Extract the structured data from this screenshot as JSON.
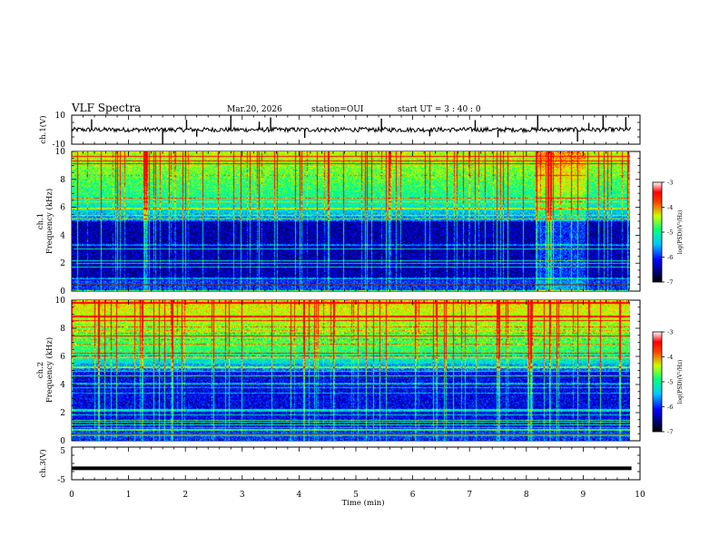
{
  "header": {
    "title": "VLF Spectra",
    "date": "Mar.20, 2026",
    "station": "station=OUI",
    "start": "start  UT =  3 : 40 : 0"
  },
  "chart_data": [
    {
      "type": "line",
      "name": "ch1_waveform",
      "ylabel": "ch.1(V)",
      "ylim": [
        -10,
        10
      ],
      "yticks": [
        "10",
        "-10"
      ],
      "baseline_value": 0,
      "spike_times_min": [
        0.35,
        1.6,
        2.02,
        2.2,
        2.8,
        3.3,
        3.5,
        4.1,
        5.45,
        6.3,
        7.1,
        7.5,
        8.2,
        8.9,
        9.1,
        9.35,
        9.75
      ]
    },
    {
      "type": "heatmap",
      "name": "ch1_spectrogram",
      "ylabel": "ch.1\nFrequency (kHz)",
      "xlim": [
        0,
        10
      ],
      "ylim": [
        0,
        10
      ],
      "yticks": [
        "0",
        "2",
        "4",
        "6",
        "8",
        "10"
      ],
      "data_end_min": 9.85,
      "colorbar": {
        "label": "log(PSD)(V²/Hz)",
        "range": [
          -7,
          -3
        ],
        "ticks": [
          "-3",
          "-4",
          "-5",
          "-6",
          "-7"
        ]
      }
    },
    {
      "type": "heatmap",
      "name": "ch2_spectrogram",
      "ylabel": "ch.2\nFrequency (kHz)",
      "xlim": [
        0,
        10
      ],
      "ylim": [
        0,
        10
      ],
      "yticks": [
        "0",
        "2",
        "4",
        "6",
        "8",
        "10"
      ],
      "data_end_min": 9.85,
      "colorbar": {
        "label": "log(PSD)(V²/Hz)",
        "range": [
          -7,
          -3
        ],
        "ticks": [
          "-3",
          "-4",
          "-5",
          "-6",
          "-7"
        ]
      }
    },
    {
      "type": "line",
      "name": "ch3_waveform",
      "ylabel": "ch.3(V)",
      "ylim": [
        -5,
        5
      ],
      "yticks": [
        "5",
        "-5"
      ],
      "level_value": -1.5
    }
  ],
  "xaxis": {
    "label": "Time (min)",
    "range": [
      0,
      10
    ],
    "ticks": [
      "0",
      "1",
      "2",
      "3",
      "4",
      "5",
      "6",
      "7",
      "8",
      "9",
      "10"
    ]
  },
  "colors": {
    "spec_low": "#000066",
    "spec_mid": "#00c0ff",
    "spec_high": "#ffff00",
    "spec_max": "#ff0000"
  }
}
